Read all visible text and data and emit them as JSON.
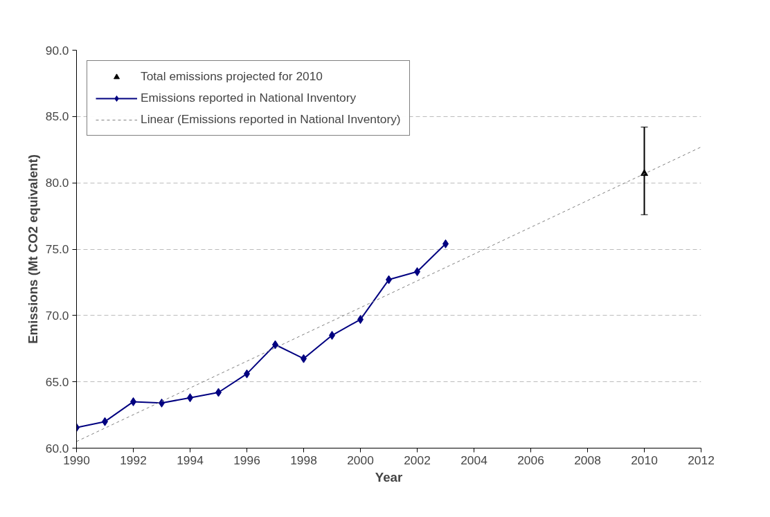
{
  "chart_data": {
    "type": "line",
    "xlabel": "Year",
    "ylabel": "Emissions (Mt CO2 equivalent)",
    "xlim": [
      1990,
      2012
    ],
    "xticks": [
      1990,
      1992,
      1994,
      1996,
      1998,
      2000,
      2002,
      2004,
      2006,
      2008,
      2010,
      2012
    ],
    "ylim": [
      60,
      90
    ],
    "yticks": [
      {
        "value": 60,
        "label": "60.0"
      },
      {
        "value": 65,
        "label": "65.0"
      },
      {
        "value": 70,
        "label": "70.0"
      },
      {
        "value": 75,
        "label": "75.0"
      },
      {
        "value": 80,
        "label": "80.0"
      },
      {
        "value": 85,
        "label": "85.0"
      },
      {
        "value": 90,
        "label": "90.0"
      }
    ],
    "grid": "y",
    "legend": "top left",
    "series": [
      {
        "name": "Total emissions projected for 2010",
        "type": "scatter",
        "marker": "triangle",
        "color": "#000000",
        "x": [
          2010
        ],
        "values": [
          80.7
        ],
        "errors": [
          [
            77.6,
            84.2
          ]
        ]
      },
      {
        "name": "Emissions reported in National Inventory",
        "marker": "diamond",
        "line_style": "solid",
        "color": "#000080",
        "x": [
          1990,
          1991,
          1992,
          1993,
          1994,
          1995,
          1996,
          1997,
          1998,
          1999,
          2000,
          2001,
          2002,
          2003
        ],
        "values": [
          61.55,
          62.0,
          63.5,
          63.4,
          63.8,
          64.2,
          65.6,
          67.8,
          66.75,
          68.5,
          69.7,
          72.7,
          73.3,
          75.4
        ]
      },
      {
        "name": "Linear (Emissions reported in National Inventory)",
        "type": "line",
        "marker": "none",
        "line_style": "dashed",
        "color": "#808080",
        "x": [
          1990,
          2012
        ],
        "values": [
          60.5,
          82.7
        ]
      }
    ]
  }
}
